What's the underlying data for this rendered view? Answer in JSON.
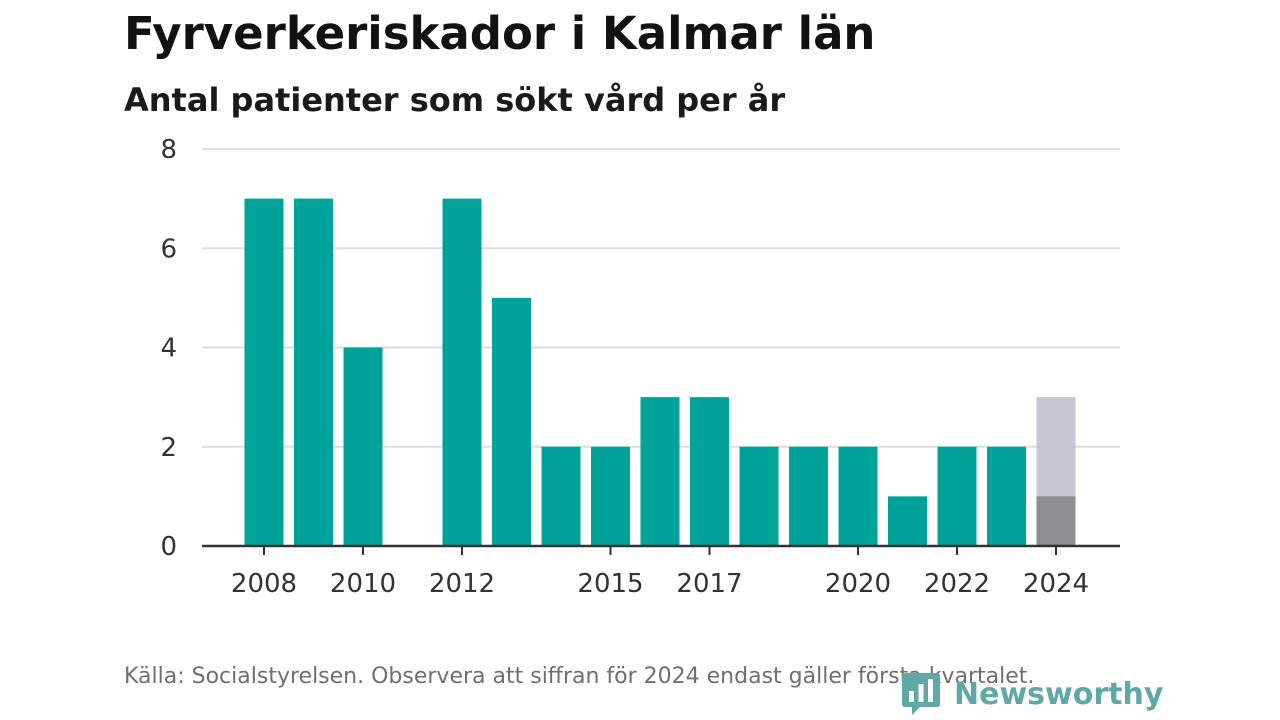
{
  "title": "Fyrverkeriskador i Kalmar län",
  "subtitle": "Antal patienter som sökt vård per år",
  "footer": {
    "source": "Källa: Socialstyrelsen. Observera att siffran för 2024 endast gäller första kvartalet."
  },
  "brand": {
    "name": "Newsworthy",
    "logo_icon": "newsworthy-logo-icon",
    "color": "#5fa8a6"
  },
  "chart_data": {
    "type": "bar",
    "title": "Fyrverkeriskador i Kalmar län",
    "subtitle": "Antal patienter som sökt vård per år",
    "xlabel": "",
    "ylabel": "",
    "categories": [
      2008,
      2009,
      2010,
      2011,
      2012,
      2013,
      2014,
      2015,
      2016,
      2017,
      2018,
      2019,
      2020,
      2021,
      2022,
      2023,
      2024
    ],
    "x_tick_labels": [
      "2008",
      "2010",
      "2012",
      "2015",
      "2017",
      "2020",
      "2022",
      "2024"
    ],
    "series": [
      {
        "values": [
          7,
          7,
          4,
          null,
          7,
          5,
          2,
          2,
          3,
          3,
          2,
          2,
          2,
          1,
          2,
          2,
          1
        ],
        "color": "#00a29a",
        "last_bar_color": "#8e8e93"
      },
      {
        "values": [
          null,
          null,
          null,
          null,
          null,
          null,
          null,
          null,
          null,
          null,
          null,
          null,
          null,
          null,
          null,
          null,
          3
        ],
        "color": "#c8c6d0"
      }
    ],
    "ylim": [
      0,
      8
    ],
    "yticks": [
      0,
      2,
      4,
      6,
      8
    ],
    "grid": true,
    "legend": "none",
    "colors": {
      "grid": "#dddddd",
      "axis": "#333333"
    }
  }
}
